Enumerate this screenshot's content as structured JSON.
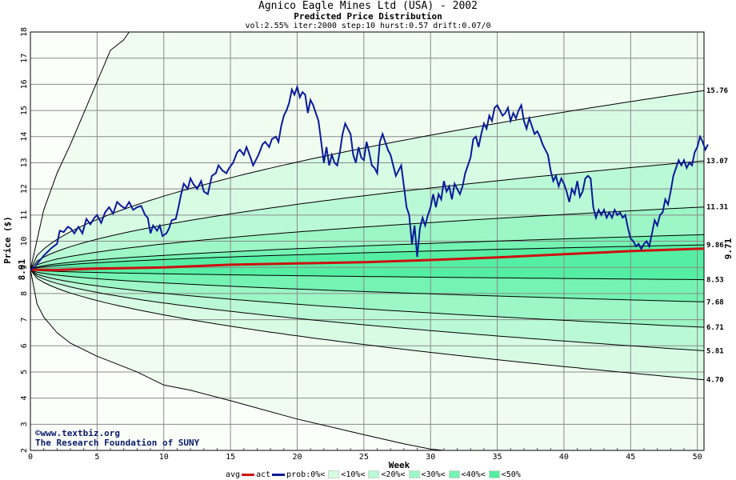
{
  "chart_data": {
    "type": "line",
    "title": "Agnico Eagle Mines Ltd (USA) - 2002",
    "subtitle": "Predicted Price Distribution",
    "params": "vol:2.55% iter:2000 step:10 hurst:0.57 drift:0.07/0",
    "xlabel": "Week",
    "ylabel": "Price ($)",
    "xlim": [
      0,
      50.5
    ],
    "ylim": [
      2,
      18
    ],
    "x_ticks": [
      0,
      5,
      10,
      15,
      20,
      25,
      30,
      35,
      40,
      45,
      50
    ],
    "y_ticks": [
      2,
      3,
      4,
      5,
      6,
      7,
      8,
      9,
      10,
      11,
      12,
      13,
      14,
      15,
      16,
      17,
      18
    ],
    "grid": true,
    "start_price": "8.91",
    "end_avg_label": "9.71",
    "right_labels": [
      "15.76",
      "13.07",
      "11.31",
      "9.86",
      "8.53",
      "7.68",
      "6.71",
      "5.81",
      "4.70"
    ],
    "band_colors": [
      "#f0fcf0",
      "#d8fbe4",
      "#baf9d5",
      "#9cf6c6",
      "#74f3b3",
      "#55efa3"
    ],
    "envelope_upper": [
      [
        0,
        8.91
      ],
      [
        1,
        11.2
      ],
      [
        2,
        12.6
      ],
      [
        3,
        13.7
      ],
      [
        4,
        14.9
      ],
      [
        5,
        16.1
      ],
      [
        6,
        17.3
      ],
      [
        7,
        17.7
      ],
      [
        7.4,
        18
      ]
    ],
    "envelope_lower": [
      [
        0,
        8.91
      ],
      [
        0.5,
        7.6
      ],
      [
        1,
        7.1
      ],
      [
        2,
        6.5
      ],
      [
        3,
        6.1
      ],
      [
        5,
        5.6
      ],
      [
        8,
        5.0
      ],
      [
        10,
        4.5
      ],
      [
        12,
        4.3
      ],
      [
        15,
        3.9
      ],
      [
        20,
        3.2
      ],
      [
        25,
        2.6
      ],
      [
        28,
        2.25
      ],
      [
        30,
        2.05
      ],
      [
        31,
        2.0
      ]
    ],
    "percentile_curves": [
      {
        "name": "upper-10",
        "end": 15.76
      },
      {
        "name": "upper-20",
        "end": 13.07
      },
      {
        "name": "upper-30",
        "end": 11.31
      },
      {
        "name": "upper-40",
        "end": 10.25
      },
      {
        "name": "upper-50",
        "end": 9.86
      },
      {
        "name": "lower-50",
        "end": 8.53
      },
      {
        "name": "lower-40",
        "end": 7.68
      },
      {
        "name": "lower-30",
        "end": 6.71
      },
      {
        "name": "lower-20",
        "end": 5.81
      },
      {
        "name": "lower-10",
        "end": 4.7
      }
    ],
    "avg": [
      [
        0,
        8.91
      ],
      [
        2,
        8.9
      ],
      [
        5,
        8.95
      ],
      [
        10,
        9.0
      ],
      [
        15,
        9.1
      ],
      [
        20,
        9.15
      ],
      [
        25,
        9.2
      ],
      [
        30,
        9.28
      ],
      [
        35,
        9.38
      ],
      [
        40,
        9.5
      ],
      [
        45,
        9.62
      ],
      [
        50,
        9.71
      ],
      [
        50.5,
        9.72
      ]
    ],
    "actual": [
      [
        0,
        8.91
      ],
      [
        0.3,
        9.0
      ],
      [
        0.6,
        9.2
      ],
      [
        1,
        9.45
      ],
      [
        1.3,
        9.6
      ],
      [
        1.6,
        9.75
      ],
      [
        2,
        9.9
      ],
      [
        2.2,
        10.4
      ],
      [
        2.5,
        10.35
      ],
      [
        2.8,
        10.55
      ],
      [
        3,
        10.5
      ],
      [
        3.3,
        10.3
      ],
      [
        3.6,
        10.55
      ],
      [
        3.9,
        10.3
      ],
      [
        4.2,
        10.85
      ],
      [
        4.5,
        10.65
      ],
      [
        4.8,
        10.9
      ],
      [
        5,
        11.0
      ],
      [
        5.3,
        10.7
      ],
      [
        5.6,
        11.1
      ],
      [
        5.9,
        11.3
      ],
      [
        6.2,
        11.05
      ],
      [
        6.5,
        11.5
      ],
      [
        6.8,
        11.35
      ],
      [
        7.1,
        11.25
      ],
      [
        7.4,
        11.5
      ],
      [
        7.7,
        11.2
      ],
      [
        8,
        11.3
      ],
      [
        8.3,
        11.35
      ],
      [
        8.6,
        11.0
      ],
      [
        8.8,
        10.9
      ],
      [
        9.0,
        10.3
      ],
      [
        9.2,
        10.6
      ],
      [
        9.5,
        10.4
      ],
      [
        9.7,
        10.6
      ],
      [
        9.9,
        10.2
      ],
      [
        10.2,
        10.3
      ],
      [
        10.4,
        10.5
      ],
      [
        10.6,
        10.8
      ],
      [
        10.9,
        10.85
      ],
      [
        11.1,
        11.3
      ],
      [
        11.3,
        11.8
      ],
      [
        11.5,
        12.2
      ],
      [
        11.8,
        12.0
      ],
      [
        12.0,
        12.4
      ],
      [
        12.2,
        12.2
      ],
      [
        12.5,
        12.0
      ],
      [
        12.8,
        12.3
      ],
      [
        13.0,
        11.9
      ],
      [
        13.3,
        11.8
      ],
      [
        13.6,
        12.5
      ],
      [
        13.9,
        12.6
      ],
      [
        14.1,
        12.9
      ],
      [
        14.4,
        12.7
      ],
      [
        14.7,
        12.6
      ],
      [
        14.9,
        12.8
      ],
      [
        15.2,
        13.0
      ],
      [
        15.5,
        13.4
      ],
      [
        15.7,
        13.5
      ],
      [
        16,
        13.3
      ],
      [
        16.2,
        13.6
      ],
      [
        16.5,
        13.2
      ],
      [
        16.7,
        12.9
      ],
      [
        16.9,
        13.1
      ],
      [
        17.1,
        13.3
      ],
      [
        17.4,
        13.7
      ],
      [
        17.6,
        13.8
      ],
      [
        17.9,
        13.6
      ],
      [
        18.1,
        13.9
      ],
      [
        18.4,
        14.0
      ],
      [
        18.6,
        13.8
      ],
      [
        18.8,
        14.4
      ],
      [
        19.0,
        14.8
      ],
      [
        19.2,
        15.0
      ],
      [
        19.4,
        15.3
      ],
      [
        19.6,
        15.8
      ],
      [
        19.8,
        15.6
      ],
      [
        20.0,
        15.9
      ],
      [
        20.2,
        15.5
      ],
      [
        20.4,
        15.7
      ],
      [
        20.6,
        15.6
      ],
      [
        20.8,
        14.9
      ],
      [
        21.0,
        15.4
      ],
      [
        21.2,
        15.2
      ],
      [
        21.4,
        14.9
      ],
      [
        21.6,
        14.6
      ],
      [
        21.8,
        13.8
      ],
      [
        22.0,
        13.0
      ],
      [
        22.2,
        13.6
      ],
      [
        22.4,
        12.9
      ],
      [
        22.6,
        13.3
      ],
      [
        22.8,
        13.0
      ],
      [
        23.0,
        12.9
      ],
      [
        23.2,
        13.4
      ],
      [
        23.4,
        14.1
      ],
      [
        23.6,
        14.5
      ],
      [
        23.8,
        14.3
      ],
      [
        24.0,
        14.1
      ],
      [
        24.2,
        13.3
      ],
      [
        24.4,
        13.0
      ],
      [
        24.6,
        13.6
      ],
      [
        24.8,
        13.2
      ],
      [
        25.0,
        13.1
      ],
      [
        25.2,
        13.8
      ],
      [
        25.4,
        13.4
      ],
      [
        25.6,
        12.9
      ],
      [
        25.8,
        12.8
      ],
      [
        26.0,
        12.6
      ],
      [
        26.2,
        13.8
      ],
      [
        26.4,
        14.1
      ],
      [
        26.6,
        13.8
      ],
      [
        26.8,
        13.5
      ],
      [
        27.0,
        13.3
      ],
      [
        27.2,
        12.9
      ],
      [
        27.4,
        12.5
      ],
      [
        27.6,
        12.7
      ],
      [
        27.8,
        12.9
      ],
      [
        28.0,
        12.1
      ],
      [
        28.2,
        11.3
      ],
      [
        28.4,
        11.0
      ],
      [
        28.6,
        9.9
      ],
      [
        28.8,
        10.6
      ],
      [
        29.0,
        9.4
      ],
      [
        29.2,
        10.5
      ],
      [
        29.4,
        10.9
      ],
      [
        29.6,
        10.6
      ],
      [
        29.8,
        11.0
      ],
      [
        30.0,
        11.3
      ],
      [
        30.2,
        11.8
      ],
      [
        30.4,
        11.3
      ],
      [
        30.6,
        11.8
      ],
      [
        30.8,
        11.6
      ],
      [
        31.0,
        12.3
      ],
      [
        31.2,
        11.9
      ],
      [
        31.4,
        12.1
      ],
      [
        31.6,
        11.6
      ],
      [
        31.8,
        12.2
      ],
      [
        32.0,
        12.0
      ],
      [
        32.2,
        11.8
      ],
      [
        32.4,
        12.1
      ],
      [
        32.6,
        12.6
      ],
      [
        32.8,
        12.9
      ],
      [
        33.0,
        13.2
      ],
      [
        33.2,
        13.9
      ],
      [
        33.4,
        14.0
      ],
      [
        33.6,
        13.6
      ],
      [
        33.8,
        14.1
      ],
      [
        34.0,
        14.5
      ],
      [
        34.2,
        14.3
      ],
      [
        34.4,
        14.8
      ],
      [
        34.6,
        14.6
      ],
      [
        34.8,
        15.1
      ],
      [
        35.0,
        15.2
      ],
      [
        35.2,
        15.0
      ],
      [
        35.4,
        14.8
      ],
      [
        35.6,
        14.9
      ],
      [
        35.8,
        15.1
      ],
      [
        36.0,
        14.6
      ],
      [
        36.2,
        14.9
      ],
      [
        36.4,
        14.7
      ],
      [
        36.6,
        15.0
      ],
      [
        36.8,
        15.2
      ],
      [
        37.0,
        14.6
      ],
      [
        37.2,
        14.3
      ],
      [
        37.4,
        14.7
      ],
      [
        37.6,
        14.4
      ],
      [
        37.8,
        14.1
      ],
      [
        38.0,
        14.2
      ],
      [
        38.2,
        14.0
      ],
      [
        38.4,
        13.7
      ],
      [
        38.6,
        13.5
      ],
      [
        38.8,
        13.3
      ],
      [
        39.0,
        12.7
      ],
      [
        39.2,
        12.3
      ],
      [
        39.4,
        12.5
      ],
      [
        39.6,
        12.1
      ],
      [
        39.8,
        12.4
      ],
      [
        40.0,
        12.2
      ],
      [
        40.2,
        11.9
      ],
      [
        40.4,
        11.5
      ],
      [
        40.6,
        12.0
      ],
      [
        40.8,
        11.8
      ],
      [
        41.0,
        12.3
      ],
      [
        41.2,
        11.7
      ],
      [
        41.4,
        11.9
      ],
      [
        41.6,
        12.4
      ],
      [
        41.8,
        12.5
      ],
      [
        42.0,
        12.4
      ],
      [
        42.2,
        11.3
      ],
      [
        42.4,
        10.9
      ],
      [
        42.6,
        11.2
      ],
      [
        42.8,
        11.0
      ],
      [
        43.0,
        11.2
      ],
      [
        43.2,
        10.9
      ],
      [
        43.4,
        11.1
      ],
      [
        43.6,
        10.9
      ],
      [
        43.8,
        11.2
      ],
      [
        44.0,
        11.0
      ],
      [
        44.2,
        11.1
      ],
      [
        44.4,
        10.9
      ],
      [
        44.6,
        11.0
      ],
      [
        44.8,
        10.5
      ],
      [
        45.0,
        10.1
      ],
      [
        45.2,
        10.0
      ],
      [
        45.4,
        9.8
      ],
      [
        45.6,
        9.9
      ],
      [
        45.8,
        9.7
      ],
      [
        46.0,
        9.9
      ],
      [
        46.2,
        10.0
      ],
      [
        46.4,
        9.8
      ],
      [
        46.6,
        10.3
      ],
      [
        46.8,
        10.8
      ],
      [
        47.0,
        10.6
      ],
      [
        47.2,
        11.0
      ],
      [
        47.4,
        11.1
      ],
      [
        47.6,
        11.6
      ],
      [
        47.8,
        11.4
      ],
      [
        48.0,
        11.9
      ],
      [
        48.2,
        12.5
      ],
      [
        48.4,
        12.8
      ],
      [
        48.6,
        13.1
      ],
      [
        48.8,
        12.9
      ],
      [
        49.0,
        13.1
      ],
      [
        49.2,
        12.8
      ],
      [
        49.4,
        13.0
      ],
      [
        49.6,
        12.9
      ],
      [
        49.8,
        13.4
      ],
      [
        50.0,
        13.6
      ],
      [
        50.2,
        14.0
      ],
      [
        50.4,
        13.8
      ],
      [
        50.6,
        13.5
      ],
      [
        50.8,
        13.7
      ]
    ]
  },
  "watermark": {
    "line1": "©www.textbiz.org",
    "line2": "The Research Foundation of SUNY"
  },
  "legend": {
    "avg": "avg",
    "act": "act",
    "prob": "prob:0%<",
    "items": [
      "<10%<",
      "<20%<",
      "<30%<",
      "<40%<",
      "<50%"
    ],
    "avg_color": "#cc1111",
    "act_color": "#0a1a9a"
  }
}
